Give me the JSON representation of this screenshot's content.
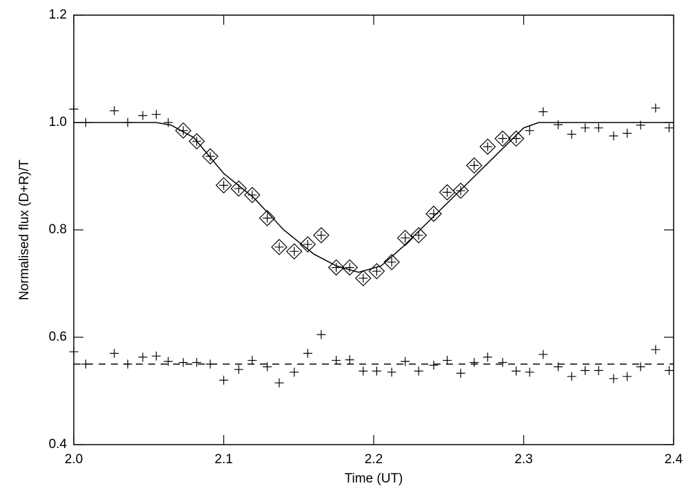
{
  "chart_data": {
    "type": "scatter",
    "xlabel": "Time (UT)",
    "ylabel": "Normalised flux (D+R)/T",
    "xlim": [
      2.0,
      2.4
    ],
    "ylim": [
      0.4,
      1.2
    ],
    "xticks": [
      {
        "value": 2.0,
        "label": "2.0"
      },
      {
        "value": 2.1,
        "label": "2.1"
      },
      {
        "value": 2.2,
        "label": "2.2"
      },
      {
        "value": 2.3,
        "label": "2.3"
      },
      {
        "value": 2.4,
        "label": "2.4"
      }
    ],
    "yticks": [
      {
        "value": 0.4,
        "label": "0.4"
      },
      {
        "value": 0.6,
        "label": "0.6"
      },
      {
        "value": 0.8,
        "label": "0.8"
      },
      {
        "value": 1.0,
        "label": "1.0"
      },
      {
        "value": 1.2,
        "label": "1.2"
      }
    ],
    "grid": false,
    "series": [
      {
        "marker": "plus",
        "color": "#000000",
        "x": [
          2.0,
          2.008,
          2.027,
          2.036,
          2.046,
          2.055,
          2.063,
          2.073,
          2.082,
          2.091,
          2.1,
          2.11,
          2.119,
          2.129,
          2.137,
          2.147,
          2.156,
          2.165,
          2.175,
          2.184,
          2.193,
          2.202,
          2.212,
          2.221,
          2.23,
          2.24,
          2.249,
          2.258,
          2.267,
          2.276,
          2.286,
          2.295,
          2.304,
          2.313,
          2.323,
          2.332,
          2.341,
          2.35,
          2.36,
          2.369,
          2.378,
          2.388,
          2.397
        ],
        "values": [
          1.025,
          1.0,
          1.022,
          1.0,
          1.013,
          1.015,
          1.0,
          0.985,
          0.965,
          0.937,
          0.883,
          0.877,
          0.865,
          0.822,
          0.768,
          0.76,
          0.773,
          0.79,
          0.73,
          0.73,
          0.71,
          0.723,
          0.74,
          0.785,
          0.79,
          0.83,
          0.87,
          0.873,
          0.92,
          0.955,
          0.97,
          0.97,
          0.985,
          1.02,
          0.996,
          0.978,
          0.99,
          0.99,
          0.975,
          0.98,
          0.995,
          1.027,
          0.99
        ]
      },
      {
        "marker": "diamond",
        "color": "#000000",
        "x": [
          2.073,
          2.082,
          2.091,
          2.1,
          2.11,
          2.119,
          2.129,
          2.137,
          2.147,
          2.156,
          2.165,
          2.175,
          2.184,
          2.193,
          2.202,
          2.212,
          2.221,
          2.23,
          2.24,
          2.249,
          2.258,
          2.267,
          2.276,
          2.286,
          2.295
        ],
        "values": [
          0.985,
          0.965,
          0.937,
          0.883,
          0.877,
          0.865,
          0.822,
          0.768,
          0.76,
          0.773,
          0.79,
          0.73,
          0.73,
          0.71,
          0.723,
          0.74,
          0.785,
          0.79,
          0.83,
          0.87,
          0.873,
          0.92,
          0.955,
          0.97,
          0.97
        ]
      },
      {
        "marker": "plus",
        "color": "#000000",
        "x": [
          2.0,
          2.008,
          2.027,
          2.036,
          2.046,
          2.055,
          2.063,
          2.073,
          2.082,
          2.091,
          2.1,
          2.11,
          2.119,
          2.129,
          2.137,
          2.147,
          2.156,
          2.165,
          2.175,
          2.184,
          2.193,
          2.202,
          2.212,
          2.221,
          2.23,
          2.24,
          2.249,
          2.258,
          2.267,
          2.276,
          2.286,
          2.295,
          2.304,
          2.313,
          2.323,
          2.332,
          2.341,
          2.35,
          2.36,
          2.369,
          2.378,
          2.388,
          2.397
        ],
        "values": [
          0.573,
          0.55,
          0.57,
          0.55,
          0.563,
          0.565,
          0.555,
          0.553,
          0.553,
          0.55,
          0.52,
          0.54,
          0.557,
          0.545,
          0.515,
          0.535,
          0.57,
          0.605,
          0.557,
          0.558,
          0.537,
          0.537,
          0.535,
          0.555,
          0.537,
          0.548,
          0.557,
          0.533,
          0.553,
          0.563,
          0.553,
          0.537,
          0.535,
          0.568,
          0.545,
          0.527,
          0.538,
          0.538,
          0.523,
          0.527,
          0.545,
          0.577,
          0.538
        ]
      },
      {
        "line": "solid",
        "color": "#000000",
        "x": [
          2.0,
          2.055,
          2.065,
          2.08,
          2.1,
          2.12,
          2.14,
          2.16,
          2.175,
          2.19,
          2.205,
          2.22,
          2.24,
          2.26,
          2.28,
          2.3,
          2.31,
          2.4
        ],
        "values": [
          1.0,
          1.0,
          0.995,
          0.972,
          0.905,
          0.86,
          0.8,
          0.755,
          0.733,
          0.721,
          0.733,
          0.77,
          0.825,
          0.88,
          0.935,
          0.99,
          1.0,
          1.0
        ]
      },
      {
        "line": "dashed",
        "color": "#000000",
        "x": [
          2.0,
          2.4
        ],
        "values": [
          0.55,
          0.55
        ]
      }
    ]
  }
}
